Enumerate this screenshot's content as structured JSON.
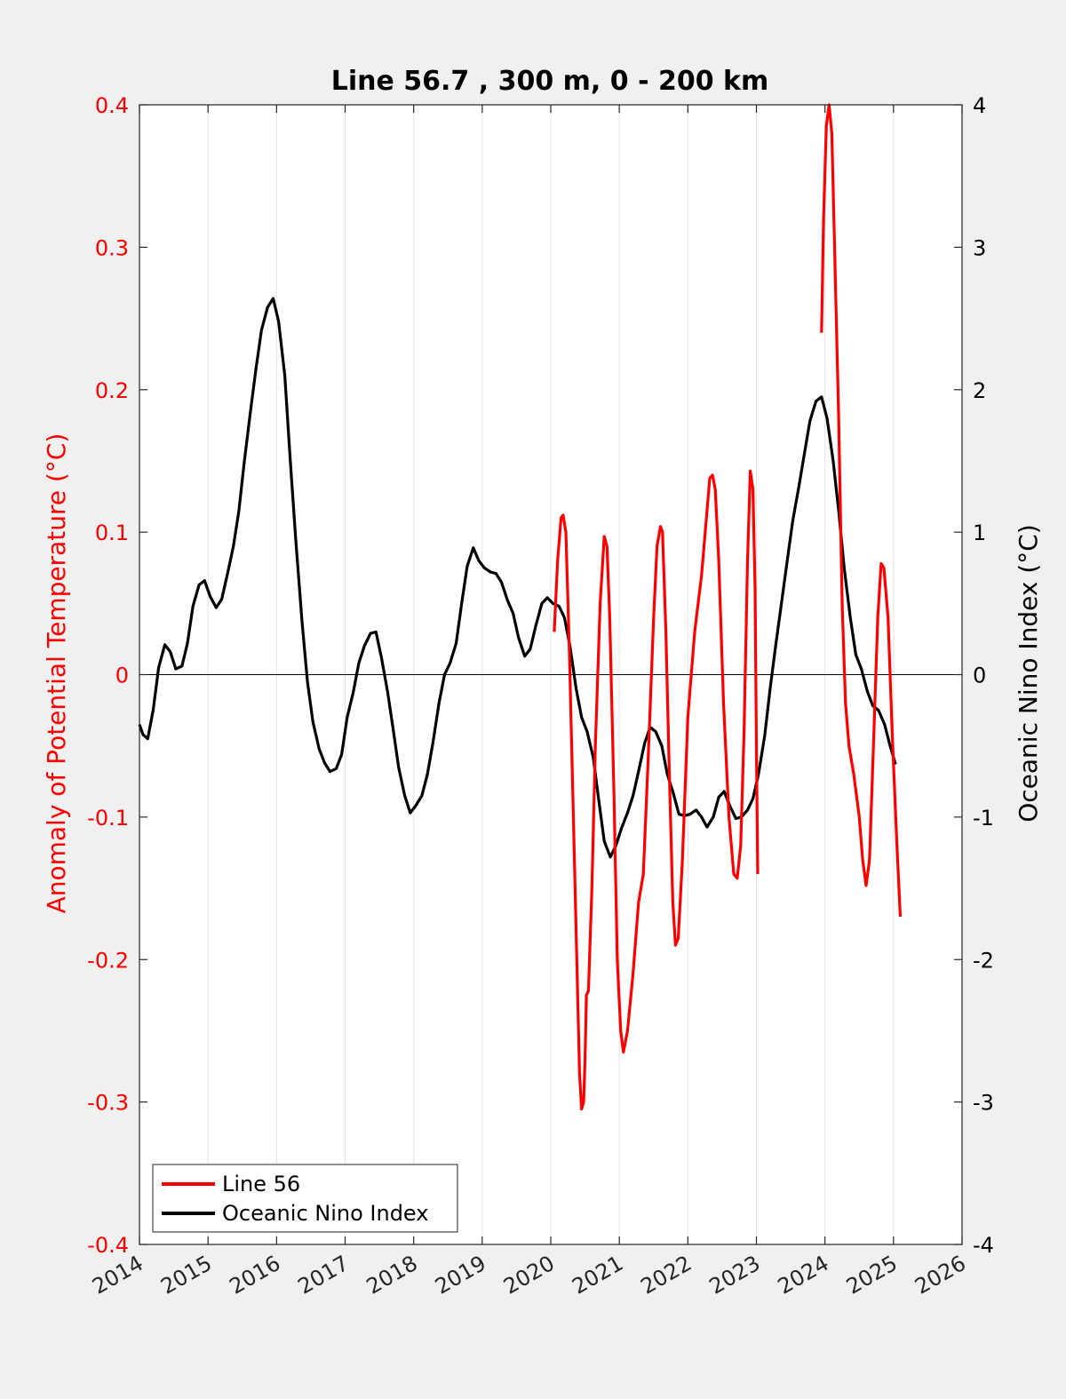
{
  "chart_data": {
    "type": "line",
    "title": "Line 56.7 , 300 m, 0 - 200 km",
    "xlabel": "",
    "ylabel_left": "Anomaly of Potential Temperature (°C)",
    "ylabel_right": "Oceanic Nino Index (°C)",
    "xlim": [
      2014,
      2026
    ],
    "ylim_left": [
      -0.4,
      0.4
    ],
    "ylim_right": [
      -4,
      4
    ],
    "x_ticks": [
      2014,
      2015,
      2016,
      2017,
      2018,
      2019,
      2020,
      2021,
      2022,
      2023,
      2024,
      2025,
      2026
    ],
    "y_ticks_left": [
      "-0.4",
      "-0.3",
      "-0.2",
      "-0.1",
      "0",
      "0.1",
      "0.2",
      "0.3",
      "0.4"
    ],
    "y_ticks_right": [
      "-4",
      "-3",
      "-2",
      "-1",
      "0",
      "1",
      "2",
      "3",
      "4"
    ],
    "grid": "vertical",
    "legend_position": "bottom-left",
    "colors": {
      "line56": "#ff0000",
      "oni": "#000000",
      "left_axis": "#ff0000",
      "right_axis": "#000000"
    },
    "series": [
      {
        "name": "Line 56",
        "axis": "left",
        "segments": [
          [
            [
              2020.05,
              0.03
            ],
            [
              2020.1,
              0.08
            ],
            [
              2020.15,
              0.11
            ],
            [
              2020.18,
              0.112
            ],
            [
              2020.22,
              0.1
            ],
            [
              2020.27,
              0.02
            ],
            [
              2020.32,
              -0.08
            ],
            [
              2020.38,
              -0.2
            ],
            [
              2020.42,
              -0.28
            ],
            [
              2020.45,
              -0.305
            ],
            [
              2020.48,
              -0.3
            ],
            [
              2020.5,
              -0.27
            ],
            [
              2020.52,
              -0.225
            ],
            [
              2020.55,
              -0.222
            ],
            [
              2020.6,
              -0.15
            ],
            [
              2020.65,
              -0.05
            ],
            [
              2020.72,
              0.05
            ],
            [
              2020.78,
              0.097
            ],
            [
              2020.82,
              0.09
            ],
            [
              2020.86,
              0.04
            ],
            [
              2020.92,
              -0.08
            ],
            [
              2020.97,
              -0.2
            ],
            [
              2021.02,
              -0.25
            ],
            [
              2021.06,
              -0.265
            ],
            [
              2021.12,
              -0.25
            ],
            [
              2021.2,
              -0.21
            ],
            [
              2021.28,
              -0.16
            ],
            [
              2021.35,
              -0.14
            ],
            [
              2021.42,
              -0.06
            ],
            [
              2021.5,
              0.04
            ],
            [
              2021.55,
              0.09
            ],
            [
              2021.6,
              0.104
            ],
            [
              2021.63,
              0.1
            ],
            [
              2021.68,
              0.03
            ],
            [
              2021.73,
              -0.07
            ],
            [
              2021.78,
              -0.16
            ],
            [
              2021.82,
              -0.19
            ],
            [
              2021.86,
              -0.185
            ],
            [
              2021.92,
              -0.13
            ],
            [
              2022.0,
              -0.03
            ],
            [
              2022.1,
              0.03
            ],
            [
              2022.2,
              0.07
            ],
            [
              2022.27,
              0.11
            ],
            [
              2022.32,
              0.138
            ],
            [
              2022.36,
              0.14
            ],
            [
              2022.4,
              0.13
            ],
            [
              2022.45,
              0.08
            ],
            [
              2022.52,
              -0.02
            ],
            [
              2022.6,
              -0.1
            ],
            [
              2022.67,
              -0.14
            ],
            [
              2022.72,
              -0.143
            ],
            [
              2022.77,
              -0.12
            ],
            [
              2022.82,
              -0.04
            ],
            [
              2022.87,
              0.08
            ],
            [
              2022.91,
              0.143
            ],
            [
              2022.95,
              0.13
            ],
            [
              2022.98,
              0.06
            ],
            [
              2023.0,
              -0.05
            ],
            [
              2023.02,
              -0.14
            ]
          ],
          [
            [
              2023.95,
              0.24
            ],
            [
              2023.98,
              0.32
            ],
            [
              2024.02,
              0.385
            ],
            [
              2024.06,
              0.4
            ],
            [
              2024.1,
              0.38
            ],
            [
              2024.14,
              0.3
            ],
            [
              2024.2,
              0.18
            ],
            [
              2024.25,
              0.05
            ],
            [
              2024.3,
              -0.02
            ],
            [
              2024.35,
              -0.05
            ],
            [
              2024.42,
              -0.07
            ],
            [
              2024.5,
              -0.1
            ],
            [
              2024.55,
              -0.13
            ],
            [
              2024.6,
              -0.148
            ],
            [
              2024.65,
              -0.13
            ],
            [
              2024.7,
              -0.06
            ],
            [
              2024.77,
              0.04
            ],
            [
              2024.82,
              0.078
            ],
            [
              2024.86,
              0.075
            ],
            [
              2024.92,
              0.04
            ],
            [
              2024.98,
              -0.04
            ],
            [
              2025.05,
              -0.12
            ],
            [
              2025.1,
              -0.17
            ]
          ]
        ]
      },
      {
        "name": "Oceanic Nino Index",
        "axis": "right",
        "points": [
          [
            2014.0,
            -0.35
          ],
          [
            2014.05,
            -0.42
          ],
          [
            2014.12,
            -0.45
          ],
          [
            2014.2,
            -0.25
          ],
          [
            2014.28,
            0.05
          ],
          [
            2014.37,
            0.21
          ],
          [
            2014.45,
            0.16
          ],
          [
            2014.53,
            0.04
          ],
          [
            2014.62,
            0.06
          ],
          [
            2014.7,
            0.22
          ],
          [
            2014.78,
            0.48
          ],
          [
            2014.87,
            0.63
          ],
          [
            2014.95,
            0.66
          ],
          [
            2015.03,
            0.55
          ],
          [
            2015.12,
            0.47
          ],
          [
            2015.2,
            0.53
          ],
          [
            2015.28,
            0.7
          ],
          [
            2015.37,
            0.9
          ],
          [
            2015.45,
            1.15
          ],
          [
            2015.53,
            1.5
          ],
          [
            2015.62,
            1.85
          ],
          [
            2015.7,
            2.15
          ],
          [
            2015.78,
            2.42
          ],
          [
            2015.87,
            2.58
          ],
          [
            2015.95,
            2.64
          ],
          [
            2016.03,
            2.48
          ],
          [
            2016.12,
            2.1
          ],
          [
            2016.2,
            1.5
          ],
          [
            2016.28,
            0.95
          ],
          [
            2016.37,
            0.38
          ],
          [
            2016.45,
            -0.05
          ],
          [
            2016.53,
            -0.33
          ],
          [
            2016.62,
            -0.52
          ],
          [
            2016.7,
            -0.62
          ],
          [
            2016.78,
            -0.68
          ],
          [
            2016.87,
            -0.66
          ],
          [
            2016.95,
            -0.56
          ],
          [
            2017.03,
            -0.3
          ],
          [
            2017.12,
            -0.12
          ],
          [
            2017.2,
            0.08
          ],
          [
            2017.28,
            0.2
          ],
          [
            2017.37,
            0.29
          ],
          [
            2017.45,
            0.3
          ],
          [
            2017.53,
            0.12
          ],
          [
            2017.62,
            -0.12
          ],
          [
            2017.7,
            -0.38
          ],
          [
            2017.78,
            -0.65
          ],
          [
            2017.87,
            -0.85
          ],
          [
            2017.95,
            -0.97
          ],
          [
            2018.03,
            -0.92
          ],
          [
            2018.12,
            -0.85
          ],
          [
            2018.2,
            -0.7
          ],
          [
            2018.28,
            -0.48
          ],
          [
            2018.37,
            -0.2
          ],
          [
            2018.45,
            0.0
          ],
          [
            2018.53,
            0.08
          ],
          [
            2018.62,
            0.22
          ],
          [
            2018.7,
            0.5
          ],
          [
            2018.78,
            0.76
          ],
          [
            2018.87,
            0.89
          ],
          [
            2018.95,
            0.8
          ],
          [
            2019.03,
            0.75
          ],
          [
            2019.12,
            0.72
          ],
          [
            2019.2,
            0.71
          ],
          [
            2019.28,
            0.65
          ],
          [
            2019.37,
            0.52
          ],
          [
            2019.45,
            0.43
          ],
          [
            2019.53,
            0.26
          ],
          [
            2019.62,
            0.13
          ],
          [
            2019.7,
            0.18
          ],
          [
            2019.78,
            0.34
          ],
          [
            2019.87,
            0.5
          ],
          [
            2019.95,
            0.54
          ],
          [
            2020.03,
            0.5
          ],
          [
            2020.12,
            0.48
          ],
          [
            2020.2,
            0.4
          ],
          [
            2020.28,
            0.2
          ],
          [
            2020.37,
            -0.1
          ],
          [
            2020.45,
            -0.3
          ],
          [
            2020.53,
            -0.4
          ],
          [
            2020.62,
            -0.58
          ],
          [
            2020.7,
            -0.88
          ],
          [
            2020.78,
            -1.17
          ],
          [
            2020.87,
            -1.28
          ],
          [
            2020.95,
            -1.2
          ],
          [
            2021.03,
            -1.08
          ],
          [
            2021.12,
            -0.97
          ],
          [
            2021.2,
            -0.85
          ],
          [
            2021.28,
            -0.68
          ],
          [
            2021.37,
            -0.48
          ],
          [
            2021.45,
            -0.37
          ],
          [
            2021.53,
            -0.4
          ],
          [
            2021.62,
            -0.5
          ],
          [
            2021.7,
            -0.7
          ],
          [
            2021.78,
            -0.82
          ],
          [
            2021.87,
            -0.98
          ],
          [
            2021.95,
            -0.99
          ],
          [
            2022.03,
            -0.98
          ],
          [
            2022.12,
            -0.95
          ],
          [
            2022.2,
            -1.0
          ],
          [
            2022.28,
            -1.07
          ],
          [
            2022.37,
            -1.0
          ],
          [
            2022.45,
            -0.86
          ],
          [
            2022.53,
            -0.82
          ],
          [
            2022.62,
            -0.93
          ],
          [
            2022.7,
            -1.01
          ],
          [
            2022.78,
            -1.0
          ],
          [
            2022.87,
            -0.95
          ],
          [
            2022.95,
            -0.87
          ],
          [
            2023.03,
            -0.7
          ],
          [
            2023.12,
            -0.43
          ],
          [
            2023.2,
            -0.1
          ],
          [
            2023.28,
            0.2
          ],
          [
            2023.37,
            0.52
          ],
          [
            2023.45,
            0.8
          ],
          [
            2023.53,
            1.08
          ],
          [
            2023.62,
            1.32
          ],
          [
            2023.7,
            1.55
          ],
          [
            2023.78,
            1.78
          ],
          [
            2023.87,
            1.92
          ],
          [
            2023.95,
            1.95
          ],
          [
            2024.03,
            1.8
          ],
          [
            2024.12,
            1.5
          ],
          [
            2024.2,
            1.15
          ],
          [
            2024.28,
            0.75
          ],
          [
            2024.37,
            0.4
          ],
          [
            2024.45,
            0.14
          ],
          [
            2024.53,
            0.04
          ],
          [
            2024.62,
            -0.12
          ],
          [
            2024.7,
            -0.22
          ],
          [
            2024.78,
            -0.25
          ],
          [
            2024.87,
            -0.35
          ],
          [
            2024.95,
            -0.5
          ],
          [
            2025.03,
            -0.63
          ]
        ]
      }
    ]
  }
}
